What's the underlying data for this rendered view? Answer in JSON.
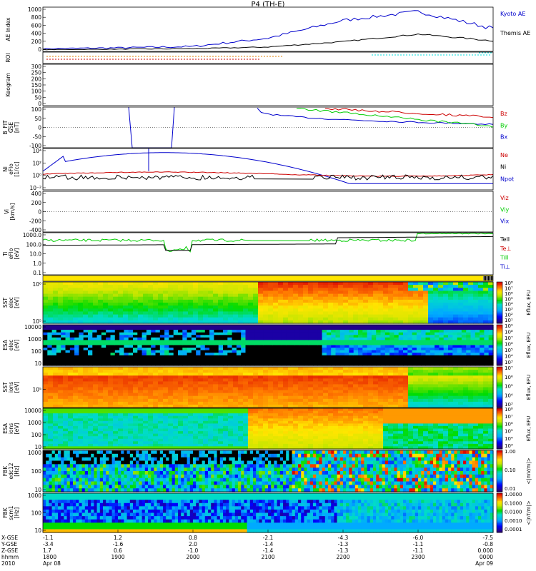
{
  "title": "P4 (TH-E)",
  "colors": {
    "blue": "#0000cc",
    "red": "#cc0000",
    "green": "#00cc00",
    "black": "#000000",
    "orange": "#e08000",
    "cyan": "#00dddd"
  },
  "panels": [
    {
      "id": "ae",
      "ylabel": [
        "AE Index"
      ],
      "ticks": [
        "1000",
        "800",
        "600",
        "400",
        "200",
        "0"
      ],
      "legend": [
        {
          "text": "Kyoto AE",
          "color": "#0000cc"
        },
        {
          "text": "Themis AE",
          "color": "#000000"
        }
      ]
    },
    {
      "id": "roi",
      "ylabel": [
        "ROI"
      ],
      "ticks": [],
      "legend": []
    },
    {
      "id": "keogram",
      "ylabel": [
        "Keogram"
      ],
      "ticks": [
        "300",
        "250",
        "200",
        "150",
        "100",
        "50",
        "0"
      ],
      "legend": []
    },
    {
      "id": "bfit",
      "ylabel": [
        "B_FIT",
        "GSE",
        "[nT]"
      ],
      "ticks": [
        "100",
        "50",
        "0",
        "-50",
        "-100"
      ],
      "legend": [
        {
          "text": "Bz",
          "color": "#cc0000"
        },
        {
          "text": "By",
          "color": "#00cc00"
        },
        {
          "text": "Bx",
          "color": "#0000cc"
        }
      ]
    },
    {
      "id": "ni",
      "ylabel": [
        "Ni",
        "eFlo",
        "[1/cc]"
      ],
      "ticks": [
        "10⁴",
        "10²",
        "10⁰",
        "10⁻²"
      ],
      "legend": [
        {
          "text": "Ne",
          "color": "#cc0000"
        },
        {
          "text": "Ni",
          "color": "#000000"
        },
        {
          "text": "Npot",
          "color": "#0000cc"
        }
      ]
    },
    {
      "id": "vi",
      "ylabel": [
        "Vi",
        "[km/s]"
      ],
      "ticks": [
        "400",
        "200",
        "0",
        "-200",
        "-400"
      ],
      "legend": [
        {
          "text": "Viz",
          "color": "#cc0000"
        },
        {
          "text": "Viy",
          "color": "#00cc00"
        },
        {
          "text": "Vix",
          "color": "#0000cc"
        }
      ]
    },
    {
      "id": "ti",
      "ylabel": [
        "Ti",
        "eFlo",
        "[eV]"
      ],
      "ticks": [
        "1000.0",
        "100.0",
        "10.0",
        "1.0",
        "0.1"
      ],
      "legend": [
        {
          "text": "TeII",
          "color": "#000000"
        },
        {
          "text": "Te⊥",
          "color": "#cc0000"
        },
        {
          "text": "TiII",
          "color": "#00cc00"
        },
        {
          "text": "Ti⊥",
          "color": "#0000cc"
        }
      ]
    },
    {
      "id": "sst_e",
      "ylabel": [
        "SST",
        "elec",
        "[eV]"
      ],
      "ticks": [
        "10⁶",
        "10⁵"
      ],
      "cbar": [
        "10⁸",
        "10⁷",
        "10⁶",
        "10⁵",
        "10⁴",
        "10³",
        "10²",
        "10¹"
      ],
      "cbarlabel": "Eflux, EFU"
    },
    {
      "id": "esa_e",
      "ylabel": [
        "ESA",
        "elec",
        "[eV]"
      ],
      "ticks": [
        "10000",
        "1000",
        "100",
        "10"
      ],
      "cbar": [
        "10⁹",
        "10⁸",
        "10⁷",
        "10⁶",
        "10⁵",
        "10⁴",
        "10³"
      ],
      "cbarlabel": "Eflux, EFU"
    },
    {
      "id": "sst_i",
      "ylabel": [
        "SST",
        "ions",
        "[eV]"
      ],
      "ticks": [
        "10⁵"
      ],
      "cbar": [
        "10⁷",
        "10⁶",
        "10⁵",
        "10⁴",
        "10³"
      ],
      "cbarlabel": "Eflux, EFU"
    },
    {
      "id": "esa_i",
      "ylabel": [
        "ESA",
        "ions",
        "[eV]"
      ],
      "ticks": [
        "10000",
        "1000",
        "100",
        "10"
      ],
      "cbar": [
        "10⁸",
        "10⁷",
        "10⁶",
        "10⁵",
        "10⁴",
        "10³"
      ],
      "cbarlabel": "Eflux, EFU"
    },
    {
      "id": "fbk_edc",
      "ylabel": [
        "FBK",
        "edc12",
        "[Hz]"
      ],
      "ticks": [
        "1000",
        "100",
        "10"
      ],
      "cbar": [
        "1.00",
        "0.10",
        "0.01"
      ],
      "cbarlabel": "<|mV/m|>"
    },
    {
      "id": "fbk_scm",
      "ylabel": [
        "FBK",
        "scm1",
        "[Hz]"
      ],
      "ticks": [
        "1000",
        "100",
        "10"
      ],
      "cbar": [
        "1.0000",
        "0.1000",
        "0.0100",
        "0.0010",
        "0.0001"
      ],
      "cbarlabel": "<|nT/m|>"
    }
  ],
  "xaxis": {
    "row_labels": [
      "X-GSE",
      "Y-GSE",
      "Z-GSE",
      "hhmm",
      "2010"
    ],
    "columns": [
      {
        "vals": [
          "-1.1",
          "-3.4",
          "1.7",
          "1800",
          "Apr 08"
        ]
      },
      {
        "vals": [
          "1.2",
          "-1.6",
          "0.6",
          "1900",
          ""
        ]
      },
      {
        "vals": [
          "0.8",
          "2.0",
          "-1.0",
          "2000",
          ""
        ]
      },
      {
        "vals": [
          "-2.1",
          "-1.4",
          "-1.4",
          "2100",
          ""
        ]
      },
      {
        "vals": [
          "-4.3",
          "-1.3",
          "-1.3",
          "2200",
          ""
        ]
      },
      {
        "vals": [
          "-6.0",
          "-1.1",
          "-1.1",
          "2300",
          ""
        ]
      },
      {
        "vals": [
          "-7.5",
          "-0.8",
          "0.000",
          "0000",
          "Apr 09"
        ]
      }
    ]
  },
  "chart_data": {
    "type": "line",
    "title": "P4 (TH-E)",
    "x": [
      "1800",
      "1900",
      "2000",
      "2100",
      "2200",
      "2300",
      "0000"
    ],
    "series": [
      {
        "name": "Kyoto AE",
        "values": [
          60,
          80,
          110,
          300,
          700,
          900,
          520
        ]
      },
      {
        "name": "Themis AE",
        "values": [
          40,
          50,
          60,
          100,
          220,
          390,
          240
        ]
      }
    ],
    "ylabel": "AE Index",
    "ylim": [
      0,
      1000
    ]
  }
}
